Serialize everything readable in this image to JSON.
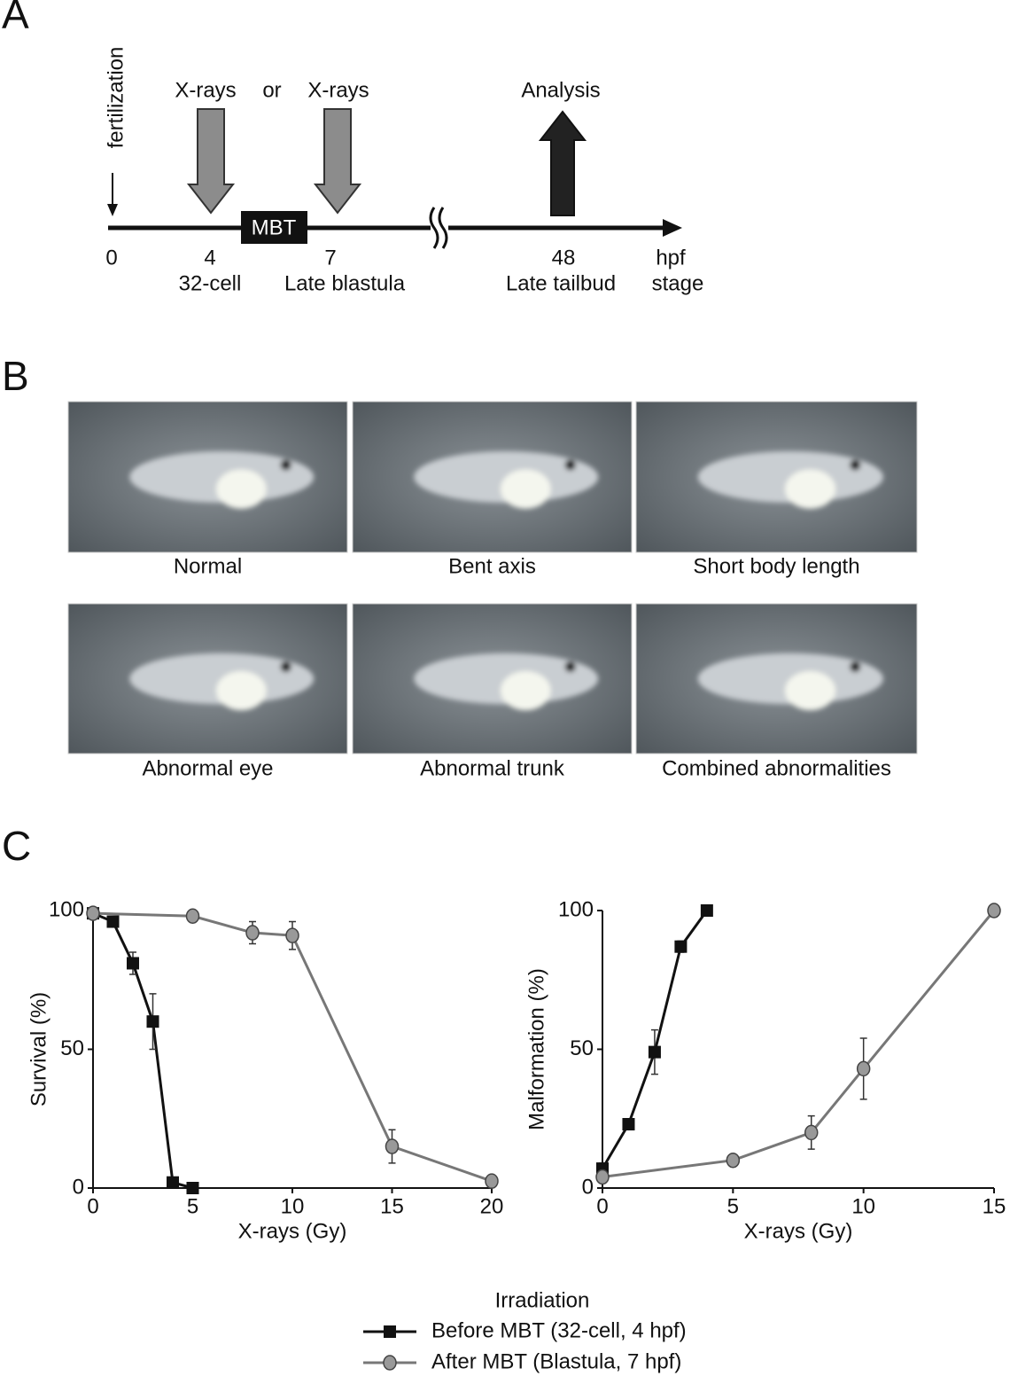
{
  "panels": {
    "a": "A",
    "b": "B",
    "c": "C"
  },
  "timeline": {
    "start": "fertilization",
    "events": [
      {
        "label": "X-rays"
      },
      {
        "label": "X-rays"
      },
      {
        "label": "Analysis"
      }
    ],
    "or": "or",
    "mbt": "MBT",
    "ticks": [
      {
        "time": 0
      },
      {
        "time": 4,
        "stage": "32-cell"
      },
      {
        "time": 7,
        "stage": "Late blastula"
      },
      {
        "time": 48,
        "stage": "Late tailbud"
      }
    ],
    "unit": "hpf",
    "stage_label": "stage"
  },
  "phenotypes": [
    "Normal",
    "Bent axis",
    "Short body length",
    "Abnormal eye",
    "Abnormal trunk",
    "Combined abnormalities"
  ],
  "chart_data": [
    {
      "type": "line",
      "x_label": "X-rays (Gy)",
      "y_label": "Survival (%)",
      "xlim": [
        0,
        20
      ],
      "xticks": [
        0,
        5,
        10,
        15,
        20
      ],
      "ylim": [
        0,
        100
      ],
      "yticks": [
        0,
        50,
        100
      ],
      "legend_title": "Irradiation",
      "series": [
        {
          "name": "Before MBT (32-cell, 4 hpf)",
          "color": "#111111",
          "marker": "square",
          "x": [
            0,
            1,
            2,
            3,
            4,
            5
          ],
          "values": [
            99,
            96,
            81,
            60,
            2,
            0
          ],
          "errors": [
            0,
            1,
            4,
            10,
            1,
            0
          ]
        },
        {
          "name": "After MBT (Blastula, 7 hpf)",
          "color": "#777777",
          "marker": "circle",
          "x": [
            0,
            5,
            8,
            10,
            15,
            20
          ],
          "values": [
            99,
            98,
            92,
            91,
            15,
            2.5
          ],
          "errors": [
            0,
            1,
            4,
            5,
            6,
            0.5
          ]
        }
      ]
    },
    {
      "type": "line",
      "x_label": "X-rays (Gy)",
      "y_label": "Malformation (%)",
      "xlim": [
        0,
        15
      ],
      "xticks": [
        0,
        5,
        10,
        15
      ],
      "ylim": [
        0,
        100
      ],
      "yticks": [
        0,
        50,
        100
      ],
      "series": [
        {
          "color": "#111111",
          "marker": "square",
          "x": [
            0,
            1,
            2,
            3,
            4
          ],
          "values": [
            7,
            23,
            49,
            87,
            100
          ],
          "errors": [
            2,
            2,
            8,
            2,
            0
          ]
        },
        {
          "color": "#777777",
          "marker": "circle",
          "x": [
            0,
            5,
            8,
            10,
            15
          ],
          "values": [
            4,
            10,
            20,
            43,
            100
          ],
          "errors": [
            1,
            1,
            6,
            11,
            0
          ]
        }
      ]
    }
  ]
}
